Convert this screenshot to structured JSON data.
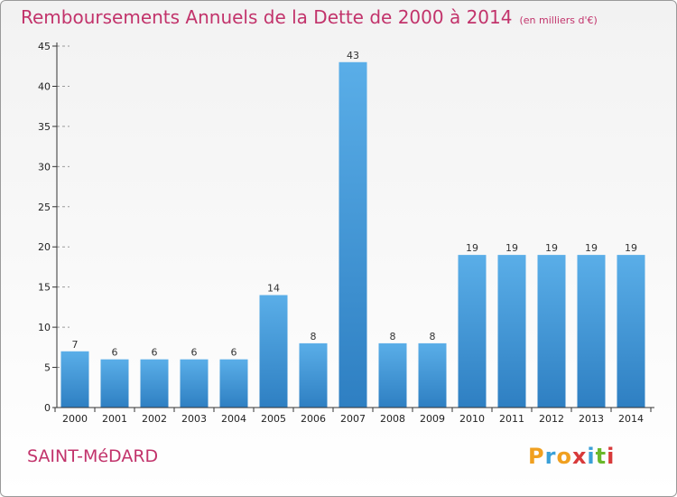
{
  "title": "Remboursements Annuels de la Dette de 2000 à 2014",
  "subtitle": "(en milliers d'€)",
  "commune": "SAINT-MéDARD",
  "logo": {
    "letters": [
      "P",
      "r",
      "o",
      "x",
      "i",
      "t",
      "i"
    ],
    "colors": [
      "#f0a020",
      "#3aa0d8",
      "#f0a020",
      "#d83a3a",
      "#3aa0d8",
      "#6ab82a",
      "#d83a3a"
    ]
  },
  "colors": {
    "title": "#c2336b",
    "bar_light": "#5aaee8",
    "bar_dark": "#2e7fc2",
    "axis": "#333333",
    "grid": "#9a9a9a"
  },
  "chart_data": {
    "type": "bar",
    "categories": [
      "2000",
      "2001",
      "2002",
      "2003",
      "2004",
      "2005",
      "2006",
      "2007",
      "2008",
      "2009",
      "2010",
      "2011",
      "2012",
      "2013",
      "2014"
    ],
    "values": [
      7,
      6,
      6,
      6,
      6,
      14,
      8,
      43,
      8,
      8,
      19,
      19,
      19,
      19,
      19
    ],
    "data_labels": [
      "7",
      "6",
      "6",
      "6",
      "6",
      "14",
      "8",
      "43",
      "8",
      "8",
      "19",
      "19",
      "19",
      "19",
      "19"
    ],
    "yticks": [
      "0",
      "5",
      "10",
      "15",
      "20",
      "25",
      "30",
      "35",
      "40",
      "45"
    ],
    "ytick_values": [
      0,
      5,
      10,
      15,
      20,
      25,
      30,
      35,
      40,
      45
    ],
    "ylim": [
      0,
      45
    ],
    "grid": "dashed horizontal stubs near y-axis",
    "legend": "none"
  }
}
